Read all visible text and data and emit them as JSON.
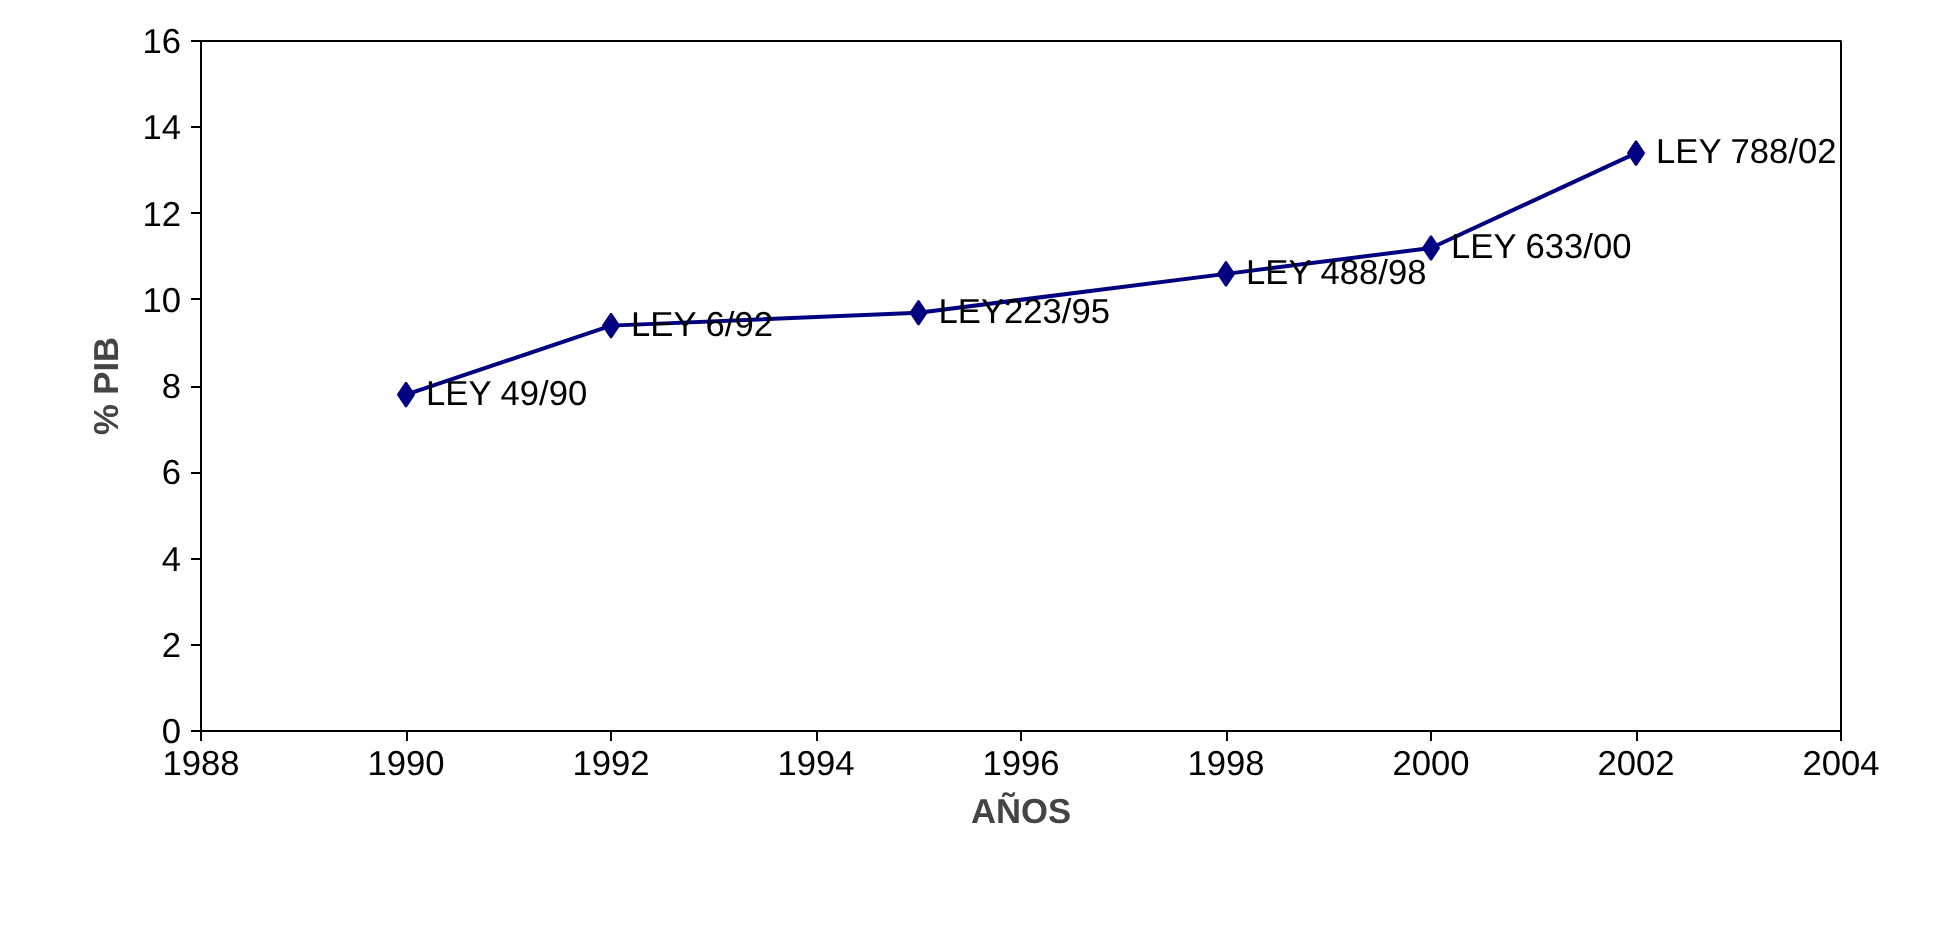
{
  "chart_data": {
    "type": "line",
    "xlabel": "AÑOS",
    "ylabel": "% PIB",
    "x": [
      1990,
      1992,
      1995,
      1998,
      2000,
      2002
    ],
    "series": [
      {
        "color": "#000080",
        "values": [
          7.8,
          9.4,
          9.7,
          10.6,
          11.2,
          13.4
        ]
      }
    ],
    "xlim": [
      1988,
      2004
    ],
    "xticks": [
      1988,
      1990,
      1992,
      1994,
      1996,
      1998,
      2000,
      2002,
      2004
    ],
    "ylim": [
      0,
      16
    ],
    "yticks": [
      0,
      2,
      4,
      6,
      8,
      10,
      12,
      14,
      16
    ],
    "marker": "diamond",
    "line_style": "solid",
    "annotations": [
      {
        "text": "LEY 49/90",
        "x": 1990,
        "y": 7.8
      },
      {
        "text": "LEY 6/92",
        "x": 1992,
        "y": 9.4
      },
      {
        "text": "LEY223/95",
        "x": 1995,
        "y": 9.7
      },
      {
        "text": "LEY 488/98",
        "x": 1998,
        "y": 10.6
      },
      {
        "text": "LEY 633/00",
        "x": 2000,
        "y": 11.2
      },
      {
        "text": "LEY 788/02",
        "x": 2002,
        "y": 13.4
      }
    ]
  }
}
